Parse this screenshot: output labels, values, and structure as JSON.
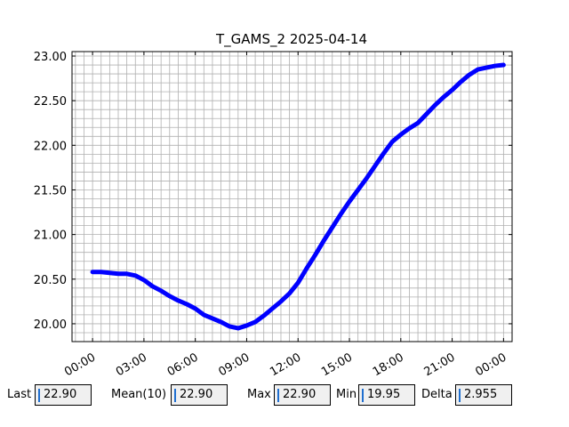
{
  "chart_data": {
    "type": "line",
    "title": "T_GAMS_2 2025-04-14",
    "x": [
      0,
      0.5,
      1,
      1.5,
      2,
      2.5,
      3,
      3.5,
      4,
      4.5,
      5,
      5.5,
      6,
      6.5,
      7,
      7.5,
      8,
      8.5,
      9,
      9.5,
      10,
      10.5,
      11,
      11.5,
      12,
      12.5,
      13,
      13.5,
      14,
      14.5,
      15,
      15.5,
      16,
      16.5,
      17,
      17.5,
      18,
      18.5,
      19,
      19.5,
      20,
      20.5,
      21,
      21.5,
      22,
      22.5,
      23,
      23.5,
      24
    ],
    "values": [
      20.58,
      20.58,
      20.57,
      20.56,
      20.56,
      20.54,
      20.49,
      20.42,
      20.37,
      20.31,
      20.26,
      20.22,
      20.17,
      20.1,
      20.06,
      20.02,
      19.97,
      19.95,
      19.98,
      20.02,
      20.09,
      20.17,
      20.25,
      20.34,
      20.46,
      20.62,
      20.77,
      20.93,
      21.08,
      21.23,
      21.37,
      21.5,
      21.63,
      21.77,
      21.91,
      22.04,
      22.12,
      22.19,
      22.25,
      22.35,
      22.45,
      22.54,
      22.62,
      22.71,
      22.79,
      22.85,
      22.87,
      22.89,
      22.9
    ],
    "color": "#0000ff",
    "xlim": [
      -1.2,
      24.5
    ],
    "xticks": [
      {
        "value": 0,
        "label": "00:00"
      },
      {
        "value": 3,
        "label": "03:00"
      },
      {
        "value": 6,
        "label": "06:00"
      },
      {
        "value": 9,
        "label": "09:00"
      },
      {
        "value": 12,
        "label": "12:00"
      },
      {
        "value": 15,
        "label": "15:00"
      },
      {
        "value": 18,
        "label": "18:00"
      },
      {
        "value": 21,
        "label": "21:00"
      },
      {
        "value": 24,
        "label": "00:00"
      }
    ],
    "ylim": [
      19.8,
      23.05
    ],
    "yticks": [
      {
        "value": 20,
        "label": "20.00"
      },
      {
        "value": 20.5,
        "label": "20.50"
      },
      {
        "value": 21,
        "label": "21.00"
      },
      {
        "value": 21.5,
        "label": "21.50"
      },
      {
        "value": 22,
        "label": "22.00"
      },
      {
        "value": 22.5,
        "label": "22.50"
      },
      {
        "value": 23,
        "label": "23.00"
      }
    ],
    "grid": true,
    "grid_step_x": 0.5,
    "grid_step_y": 0.1
  },
  "fields": [
    {
      "label": "Last",
      "value": "22.90"
    },
    {
      "label": "Mean(10)",
      "value": "22.90"
    },
    {
      "label": "Max",
      "value": "22.90"
    },
    {
      "label": "Min",
      "value": "19.95"
    },
    {
      "label": "Delta",
      "value": "2.955"
    }
  ]
}
